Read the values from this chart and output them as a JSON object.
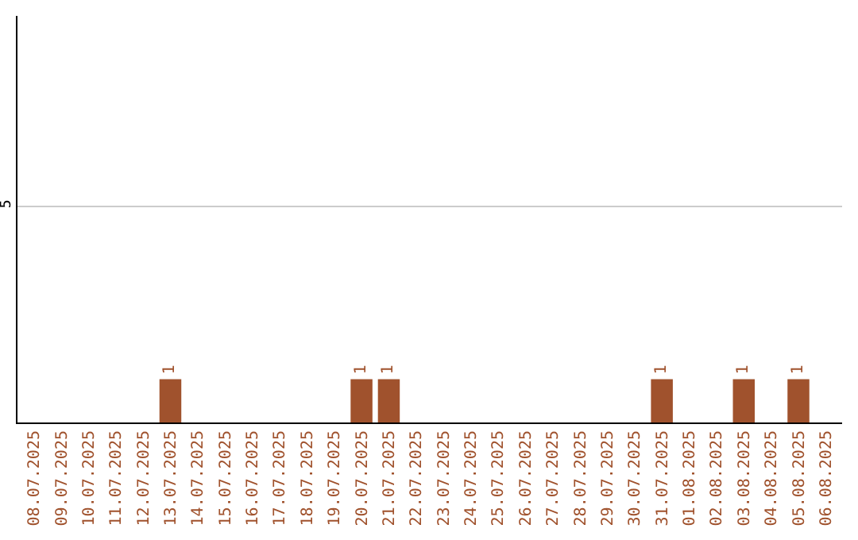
{
  "chart_data": {
    "type": "bar",
    "categories": [
      "08.07.2025",
      "09.07.2025",
      "10.07.2025",
      "11.07.2025",
      "12.07.2025",
      "13.07.2025",
      "14.07.2025",
      "15.07.2025",
      "16.07.2025",
      "17.07.2025",
      "18.07.2025",
      "19.07.2025",
      "20.07.2025",
      "21.07.2025",
      "22.07.2025",
      "23.07.2025",
      "24.07.2025",
      "25.07.2025",
      "26.07.2025",
      "27.07.2025",
      "28.07.2025",
      "29.07.2025",
      "30.07.2025",
      "31.07.2025",
      "01.08.2025",
      "02.08.2025",
      "03.08.2025",
      "04.08.2025",
      "05.08.2025",
      "06.08.2025"
    ],
    "values": [
      0,
      0,
      0,
      0,
      0,
      1,
      0,
      0,
      0,
      0,
      0,
      0,
      1,
      1,
      0,
      0,
      0,
      0,
      0,
      0,
      0,
      0,
      0,
      1,
      0,
      0,
      1,
      0,
      1,
      0
    ],
    "value_labels": [
      null,
      null,
      null,
      null,
      null,
      "1",
      null,
      null,
      null,
      null,
      null,
      null,
      "1",
      "1",
      null,
      null,
      null,
      null,
      null,
      null,
      null,
      null,
      null,
      "1",
      null,
      null,
      "1",
      null,
      "1",
      null
    ],
    "color": "#a0522d",
    "ylim": [
      0,
      9.4
    ],
    "yticks": [
      5
    ],
    "grid": "y"
  }
}
